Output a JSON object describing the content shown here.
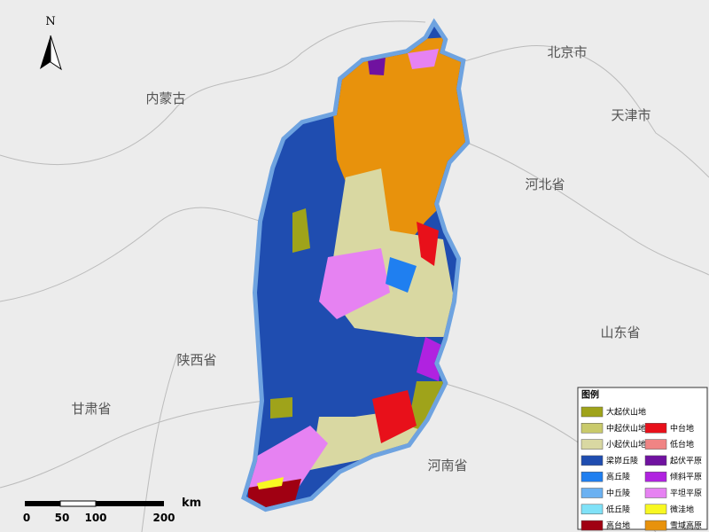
{
  "north": "N",
  "places": [
    "北京市",
    "天津市",
    "河北省",
    "内蒙古",
    "陕西省",
    "山东省",
    "甘肃省",
    "河南省"
  ],
  "legend": {
    "title": "图例",
    "items": [
      {
        "label": "大起伏山地",
        "color": "#9fa31a"
      },
      {
        "label": "中起伏山地",
        "color": "#c9ca6b"
      },
      {
        "label": "小起伏山地",
        "color": "#d9d8a2"
      },
      {
        "label": "梁峁丘陵",
        "color": "#1f4db0"
      },
      {
        "label": "高丘陵",
        "color": "#1f7ff0"
      },
      {
        "label": "中丘陵",
        "color": "#6bb1f2"
      },
      {
        "label": "低丘陵",
        "color": "#80e2f8"
      },
      {
        "label": "高台地",
        "color": "#a00012"
      },
      {
        "label": "中台地",
        "color": "#e8101a"
      },
      {
        "label": "低台地",
        "color": "#f08484"
      },
      {
        "label": "起伏平原",
        "color": "#7012a0"
      },
      {
        "label": "倾斜平原",
        "color": "#b022e0"
      },
      {
        "label": "平坦平原",
        "color": "#e682f2"
      },
      {
        "label": "微洼地",
        "color": "#f8f822"
      },
      {
        "label": "雪域高原",
        "color": "#e8920c"
      }
    ]
  },
  "scale": {
    "labels": [
      "0",
      "50",
      "100",
      "200"
    ],
    "unit": "km"
  }
}
